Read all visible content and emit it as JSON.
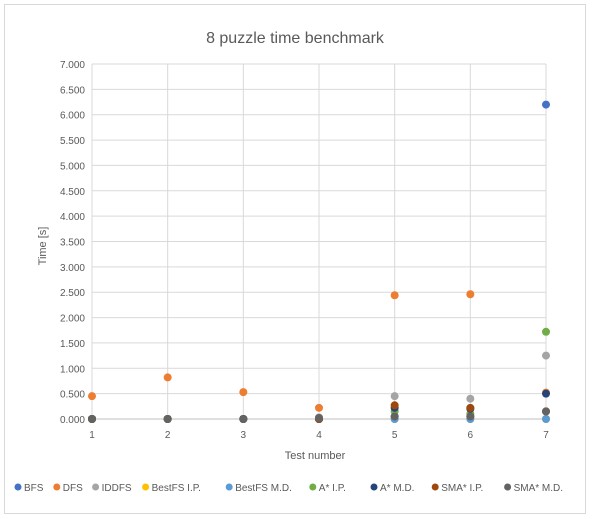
{
  "chart_data": {
    "type": "scatter",
    "title": "8 puzzle time benchmark",
    "xlabel": "Test number",
    "ylabel": "Time [s]",
    "x": [
      1,
      2,
      3,
      4,
      5,
      6,
      7
    ],
    "xlim": [
      1,
      7
    ],
    "ylim": [
      0,
      7
    ],
    "yticks": [
      "0.000",
      "0.500",
      "1.000",
      "1.500",
      "2.000",
      "2.500",
      "3.000",
      "3.500",
      "4.000",
      "4.500",
      "5.000",
      "5.500",
      "6.000",
      "6.500",
      "7.000"
    ],
    "xticks": [
      "1",
      "2",
      "3",
      "4",
      "5",
      "6",
      "7"
    ],
    "grid": true,
    "legend_position": "bottom",
    "series": [
      {
        "name": "BFS",
        "color": "#4472c4",
        "values": [
          0.0,
          0.0,
          0.0,
          0.0,
          0.05,
          0.05,
          6.2
        ]
      },
      {
        "name": "DFS",
        "color": "#ed7d31",
        "values": [
          0.45,
          0.82,
          0.53,
          0.22,
          2.44,
          2.46,
          0.52
        ]
      },
      {
        "name": "IDDFS",
        "color": "#a5a5a5",
        "values": [
          0.0,
          0.0,
          0.0,
          0.03,
          0.45,
          0.4,
          1.25
        ]
      },
      {
        "name": "BestFS I.P.",
        "color": "#ffc000",
        "values": [
          0.0,
          0.0,
          0.0,
          0.0,
          0.0,
          0.0,
          0.0
        ]
      },
      {
        "name": "BestFS M.D.",
        "color": "#5b9bd5",
        "values": [
          0.0,
          0.0,
          0.0,
          0.0,
          0.0,
          0.0,
          0.0
        ]
      },
      {
        "name": "A* I.P.",
        "color": "#70ad47",
        "values": [
          0.0,
          0.0,
          0.0,
          0.0,
          0.15,
          0.1,
          1.72
        ]
      },
      {
        "name": "A* M.D.",
        "color": "#264478",
        "values": [
          0.0,
          0.0,
          0.0,
          0.0,
          0.22,
          0.2,
          0.5
        ]
      },
      {
        "name": "SMA* I.P.",
        "color": "#9e480e",
        "values": [
          0.0,
          0.0,
          0.0,
          0.0,
          0.27,
          0.22,
          0.15
        ]
      },
      {
        "name": "SMA* M.D.",
        "color": "#636363",
        "values": [
          0.0,
          0.0,
          0.0,
          0.02,
          0.05,
          0.05,
          0.15
        ]
      }
    ]
  }
}
